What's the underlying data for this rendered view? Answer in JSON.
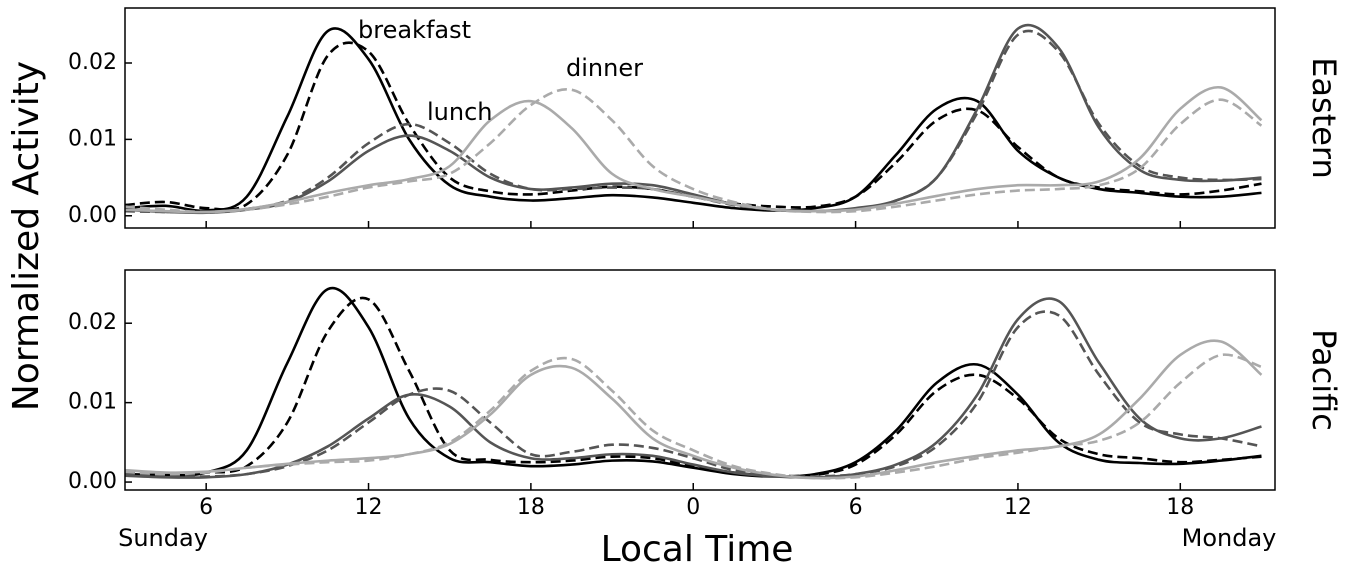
{
  "figure": {
    "xlabel": "Local Time",
    "ylabel": "Normalized Activity",
    "day_labels": [
      "Sunday",
      "Monday"
    ]
  },
  "chart_data": [
    {
      "type": "line",
      "label": "Eastern",
      "annotations": [
        "breakfast",
        "lunch",
        "dinner"
      ],
      "x": [
        3,
        4.5,
        6,
        7.5,
        9,
        10.5,
        12,
        13.5,
        15,
        16.5,
        18,
        19.5,
        21,
        22.5,
        24,
        25.5,
        27,
        28.5,
        30,
        31.5,
        33,
        34.5,
        36,
        37.5,
        39,
        40.5,
        42,
        43.5,
        45
      ],
      "xlim": [
        3,
        45.5
      ],
      "xticks": [
        6,
        12,
        18,
        24,
        30,
        36,
        42
      ],
      "ylim": [
        -0.0016,
        0.0272
      ],
      "yticks": [
        {
          "value": 0,
          "label": "0.00"
        },
        {
          "value": 0.01,
          "label": "0.01"
        },
        {
          "value": 0.02,
          "label": "0.02"
        }
      ],
      "series": [
        {
          "color": "#000000",
          "linestyle": "solid",
          "values": [
            0.001,
            0.0013,
            0.0007,
            0.0025,
            0.013,
            0.0242,
            0.0205,
            0.01,
            0.004,
            0.0025,
            0.002,
            0.0023,
            0.0027,
            0.0024,
            0.0017,
            0.001,
            0.0007,
            0.001,
            0.0025,
            0.008,
            0.014,
            0.015,
            0.0085,
            0.005,
            0.0035,
            0.003,
            0.0025,
            0.0025,
            0.003
          ]
        },
        {
          "color": "#000000",
          "linestyle": "dashed",
          "values": [
            0.0014,
            0.0018,
            0.001,
            0.0015,
            0.008,
            0.021,
            0.0215,
            0.012,
            0.005,
            0.0032,
            0.0028,
            0.0033,
            0.0038,
            0.0035,
            0.0025,
            0.0016,
            0.0012,
            0.0012,
            0.0025,
            0.007,
            0.0125,
            0.0138,
            0.009,
            0.005,
            0.0037,
            0.0032,
            0.0028,
            0.0033,
            0.0042
          ]
        },
        {
          "color": "#555555",
          "linestyle": "solid",
          "values": [
            0.0008,
            0.0005,
            0.0004,
            0.0008,
            0.0018,
            0.0045,
            0.0085,
            0.0105,
            0.0085,
            0.005,
            0.0035,
            0.0037,
            0.0042,
            0.004,
            0.0028,
            0.0015,
            0.0008,
            0.0006,
            0.001,
            0.002,
            0.005,
            0.014,
            0.0245,
            0.022,
            0.0115,
            0.006,
            0.0047,
            0.0046,
            0.005
          ]
        },
        {
          "color": "#555555",
          "linestyle": "dashed",
          "values": [
            0.0006,
            0.0005,
            0.0005,
            0.0009,
            0.002,
            0.005,
            0.0095,
            0.012,
            0.0095,
            0.0055,
            0.0035,
            0.0035,
            0.0037,
            0.0035,
            0.0025,
            0.0014,
            0.0008,
            0.0006,
            0.0009,
            0.002,
            0.005,
            0.0135,
            0.0237,
            0.0215,
            0.012,
            0.0065,
            0.005,
            0.0047,
            0.0048
          ]
        },
        {
          "color": "#aaaaaa",
          "linestyle": "solid",
          "values": [
            0.0008,
            0.0006,
            0.0005,
            0.0009,
            0.0018,
            0.003,
            0.004,
            0.0048,
            0.0065,
            0.0125,
            0.015,
            0.0115,
            0.0055,
            0.0035,
            0.0025,
            0.0015,
            0.0008,
            0.0006,
            0.0008,
            0.0016,
            0.0026,
            0.0035,
            0.004,
            0.004,
            0.0045,
            0.0075,
            0.014,
            0.0168,
            0.0125
          ]
        },
        {
          "color": "#aaaaaa",
          "linestyle": "dashed",
          "values": [
            0.0012,
            0.0008,
            0.0005,
            0.0008,
            0.0015,
            0.0025,
            0.0037,
            0.0045,
            0.0055,
            0.0095,
            0.0145,
            0.0165,
            0.0125,
            0.0065,
            0.0035,
            0.0018,
            0.0008,
            0.0005,
            0.0006,
            0.0012,
            0.002,
            0.0028,
            0.0033,
            0.0035,
            0.004,
            0.0062,
            0.012,
            0.0152,
            0.0118
          ]
        }
      ]
    },
    {
      "type": "line",
      "label": "Pacific",
      "x": [
        3,
        4.5,
        6,
        7.5,
        9,
        10.5,
        12,
        13.5,
        15,
        16.5,
        18,
        19.5,
        21,
        22.5,
        24,
        25.5,
        27,
        28.5,
        30,
        31.5,
        33,
        34.5,
        36,
        37.5,
        39,
        40.5,
        42,
        43.5,
        45
      ],
      "xlim": [
        3,
        45.5
      ],
      "xticks": [
        6,
        12,
        18,
        {
          "value": 24,
          "label": "0"
        },
        {
          "value": 30,
          "label": "6"
        },
        {
          "value": 36,
          "label": "12"
        },
        {
          "value": 42,
          "label": "18"
        }
      ],
      "ylim": [
        -0.001,
        0.0267
      ],
      "yticks": [
        {
          "value": 0,
          "label": "0.00"
        },
        {
          "value": 0.01,
          "label": "0.01"
        },
        {
          "value": 0.02,
          "label": "0.02"
        }
      ],
      "series": [
        {
          "color": "#000000",
          "linestyle": "solid",
          "values": [
            0.001,
            0.0009,
            0.0012,
            0.004,
            0.015,
            0.0243,
            0.0195,
            0.008,
            0.003,
            0.0025,
            0.002,
            0.0022,
            0.0027,
            0.0026,
            0.0018,
            0.001,
            0.0007,
            0.001,
            0.0025,
            0.0065,
            0.0125,
            0.0148,
            0.011,
            0.005,
            0.0028,
            0.0024,
            0.0023,
            0.0027,
            0.0033
          ]
        },
        {
          "color": "#000000",
          "linestyle": "dashed",
          "values": [
            0.0012,
            0.0011,
            0.0012,
            0.002,
            0.0075,
            0.019,
            0.023,
            0.014,
            0.004,
            0.0028,
            0.0025,
            0.0027,
            0.0032,
            0.003,
            0.002,
            0.0012,
            0.0008,
            0.0009,
            0.0022,
            0.006,
            0.0115,
            0.0135,
            0.0105,
            0.0055,
            0.0035,
            0.003,
            0.0025,
            0.0028,
            0.0032
          ]
        },
        {
          "color": "#555555",
          "linestyle": "solid",
          "values": [
            0.0008,
            0.0006,
            0.0006,
            0.001,
            0.0022,
            0.0045,
            0.008,
            0.011,
            0.0095,
            0.005,
            0.003,
            0.003,
            0.0035,
            0.0033,
            0.0022,
            0.0012,
            0.0007,
            0.0006,
            0.001,
            0.0022,
            0.005,
            0.011,
            0.0205,
            0.0228,
            0.015,
            0.008,
            0.0055,
            0.0055,
            0.007
          ]
        },
        {
          "color": "#555555",
          "linestyle": "dashed",
          "values": [
            0.001,
            0.0008,
            0.0007,
            0.001,
            0.002,
            0.004,
            0.0075,
            0.011,
            0.0115,
            0.0075,
            0.0035,
            0.0038,
            0.0047,
            0.0043,
            0.003,
            0.0015,
            0.0008,
            0.0007,
            0.001,
            0.002,
            0.0045,
            0.01,
            0.0195,
            0.021,
            0.0135,
            0.0075,
            0.006,
            0.0055,
            0.0045
          ]
        },
        {
          "color": "#aaaaaa",
          "linestyle": "solid",
          "values": [
            0.0015,
            0.0012,
            0.0013,
            0.0018,
            0.0023,
            0.0027,
            0.003,
            0.0035,
            0.0048,
            0.0085,
            0.0135,
            0.0144,
            0.0105,
            0.0055,
            0.0033,
            0.0018,
            0.0009,
            0.0005,
            0.0007,
            0.0015,
            0.0025,
            0.0033,
            0.004,
            0.0045,
            0.006,
            0.0105,
            0.016,
            0.0177,
            0.0135
          ]
        },
        {
          "color": "#aaaaaa",
          "linestyle": "dashed",
          "values": [
            0.0013,
            0.001,
            0.0012,
            0.0018,
            0.0022,
            0.0025,
            0.0027,
            0.0035,
            0.005,
            0.009,
            0.014,
            0.0155,
            0.0115,
            0.0065,
            0.004,
            0.002,
            0.001,
            0.0005,
            0.0006,
            0.0012,
            0.002,
            0.003,
            0.0037,
            0.0045,
            0.0052,
            0.0075,
            0.0125,
            0.016,
            0.0145
          ]
        }
      ]
    }
  ]
}
